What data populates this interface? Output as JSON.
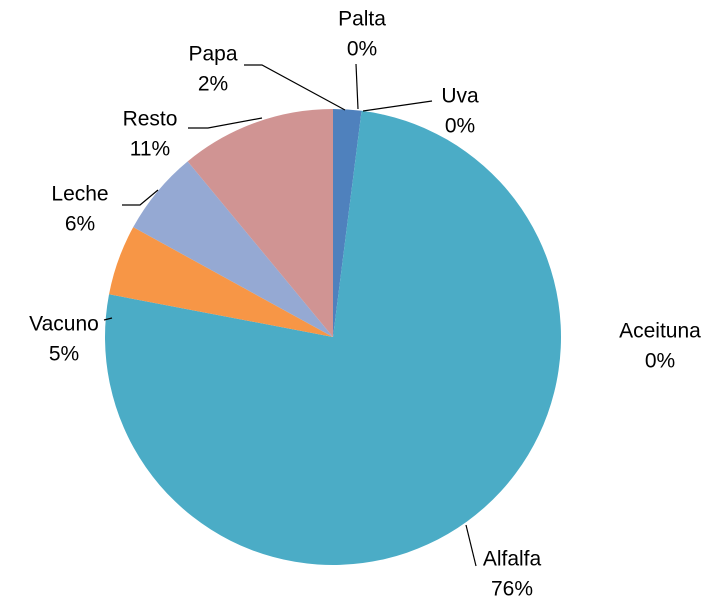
{
  "chart_data": {
    "type": "pie",
    "categories": [
      "Papa",
      "Palta",
      "Uva",
      "Aceituna",
      "Alfalfa",
      "Vacuno",
      "Leche",
      "Resto"
    ],
    "values": [
      2,
      0,
      0,
      0,
      76,
      5,
      6,
      11
    ],
    "value_labels": [
      "2%",
      "0%",
      "0%",
      "0%",
      "76%",
      "5%",
      "6%",
      "11%"
    ],
    "colors": [
      "#4f81bd",
      "#c0504d",
      "#9bbb59",
      "#8064a2",
      "#4bacc6",
      "#f79646",
      "#95a9d3",
      "#d09493"
    ]
  }
}
